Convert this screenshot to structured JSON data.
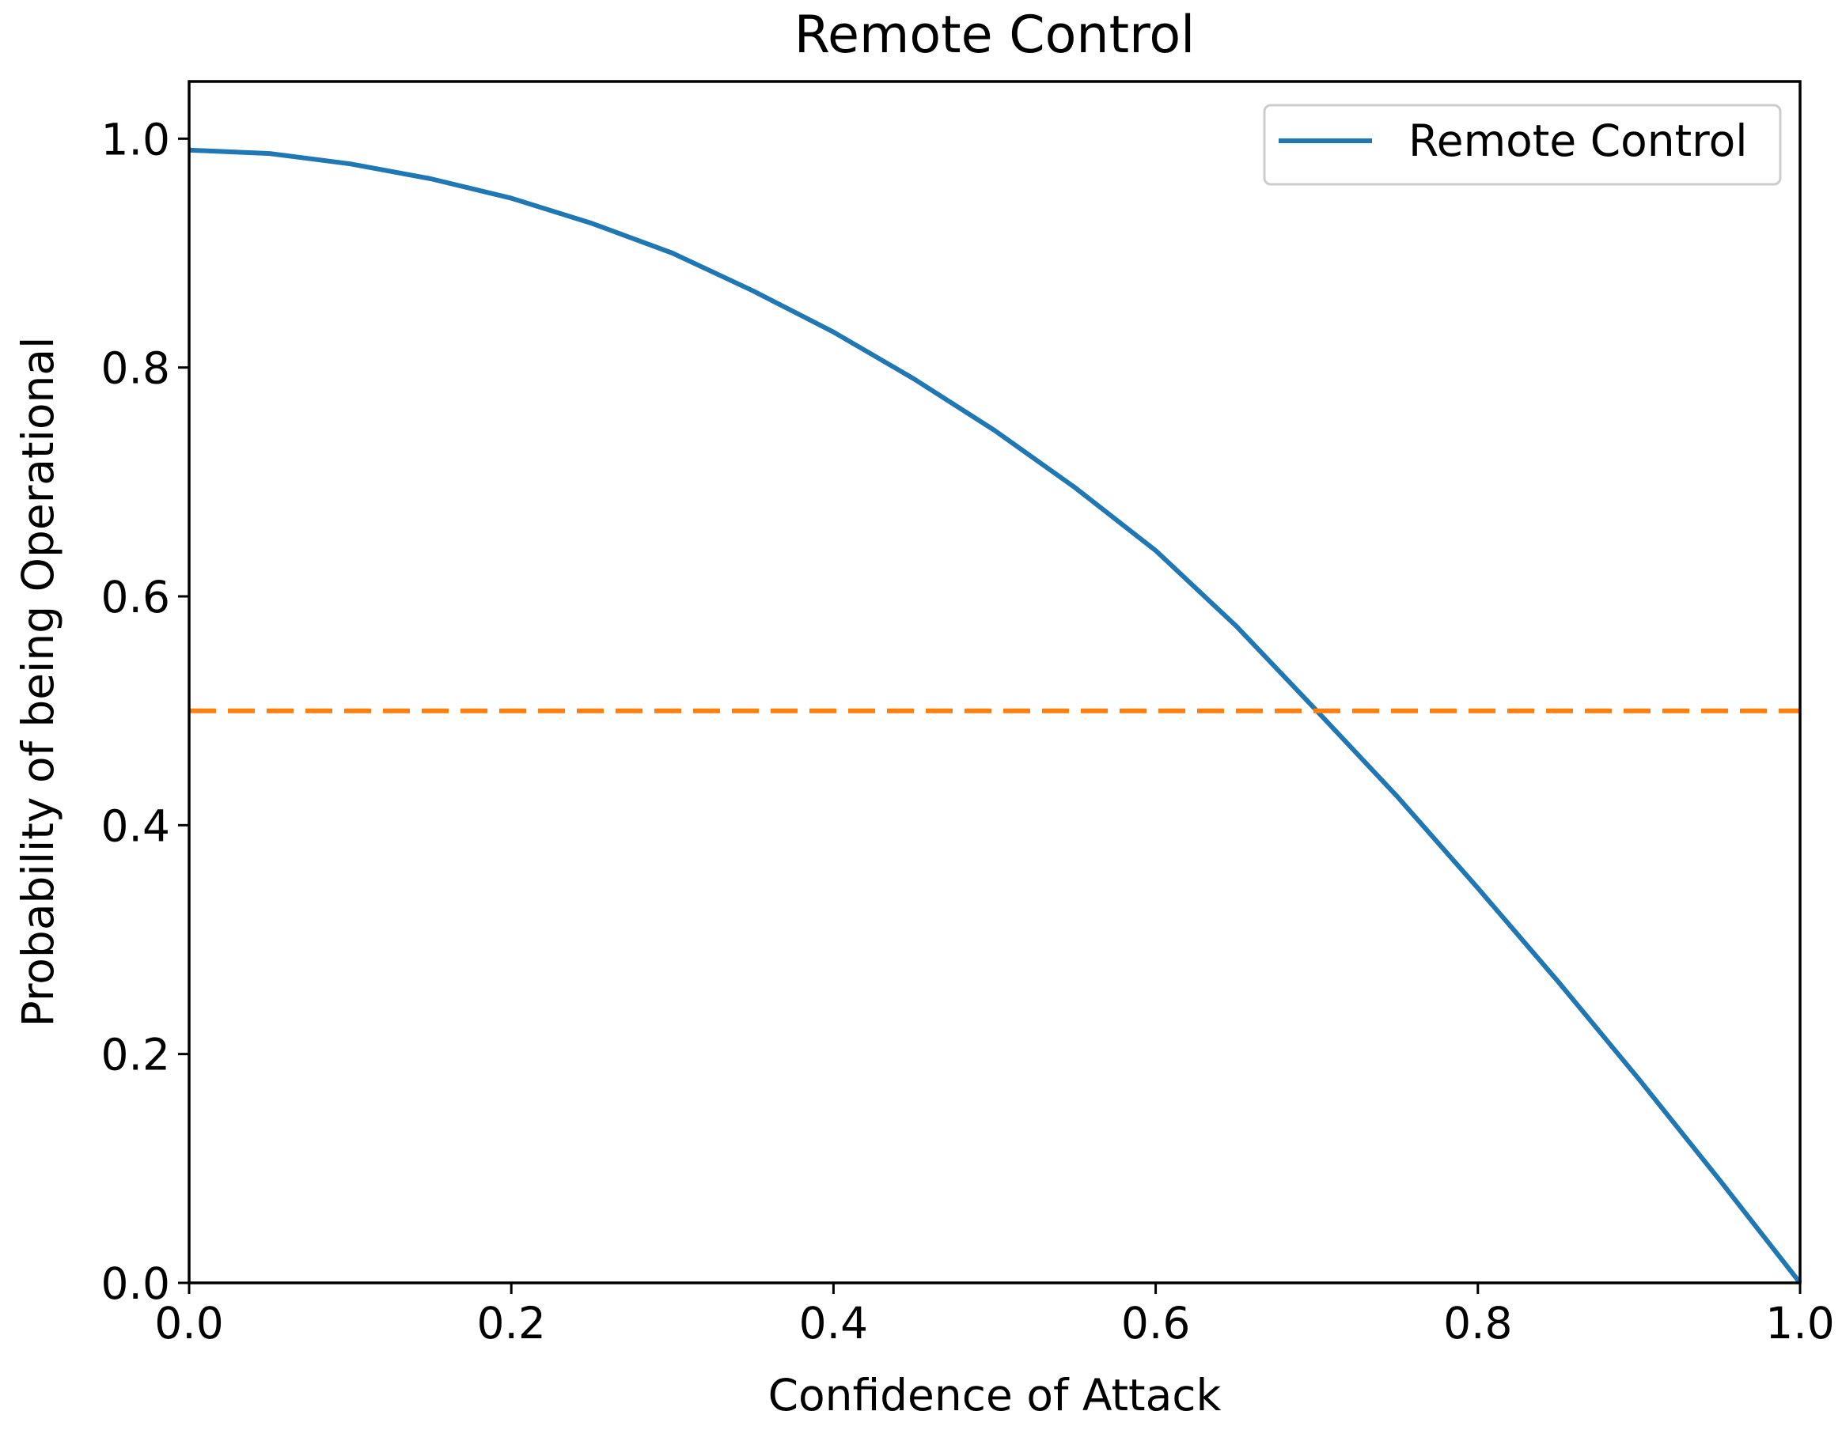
{
  "chart_data": {
    "type": "line",
    "title": "Remote Control",
    "xlabel": "Confidence of Attack",
    "ylabel": "Probability of being Operational",
    "xlim": [
      0.0,
      1.0
    ],
    "ylim": [
      0.0,
      1.05
    ],
    "xticks": [
      0.0,
      0.2,
      0.4,
      0.6,
      0.8,
      1.0
    ],
    "xtick_labels": [
      "0.0",
      "0.2",
      "0.4",
      "0.6",
      "0.8",
      "1.0"
    ],
    "yticks": [
      0.0,
      0.2,
      0.4,
      0.6,
      0.8,
      1.0
    ],
    "ytick_labels": [
      "0.0",
      "0.2",
      "0.4",
      "0.6",
      "0.8",
      "1.0"
    ],
    "grid": false,
    "legend": {
      "placement": "top-right",
      "entries": [
        "Remote Control"
      ]
    },
    "series": [
      {
        "name": "Remote Control",
        "color": "#1f77b4",
        "linestyle": "solid",
        "x": [
          0.0,
          0.05,
          0.1,
          0.15,
          0.2,
          0.25,
          0.3,
          0.35,
          0.4,
          0.45,
          0.5,
          0.55,
          0.6,
          0.65,
          0.7,
          0.75,
          0.8,
          0.85,
          0.9,
          0.95,
          1.0
        ],
        "y": [
          0.99,
          0.987,
          0.978,
          0.965,
          0.948,
          0.926,
          0.9,
          0.867,
          0.831,
          0.79,
          0.745,
          0.695,
          0.64,
          0.574,
          0.5,
          0.425,
          0.345,
          0.263,
          0.178,
          0.09,
          0.0
        ]
      },
      {
        "color": "#ff7f0e",
        "linestyle": "dashed",
        "x": [
          0.0,
          1.0
        ],
        "y": [
          0.5,
          0.5
        ]
      }
    ]
  }
}
